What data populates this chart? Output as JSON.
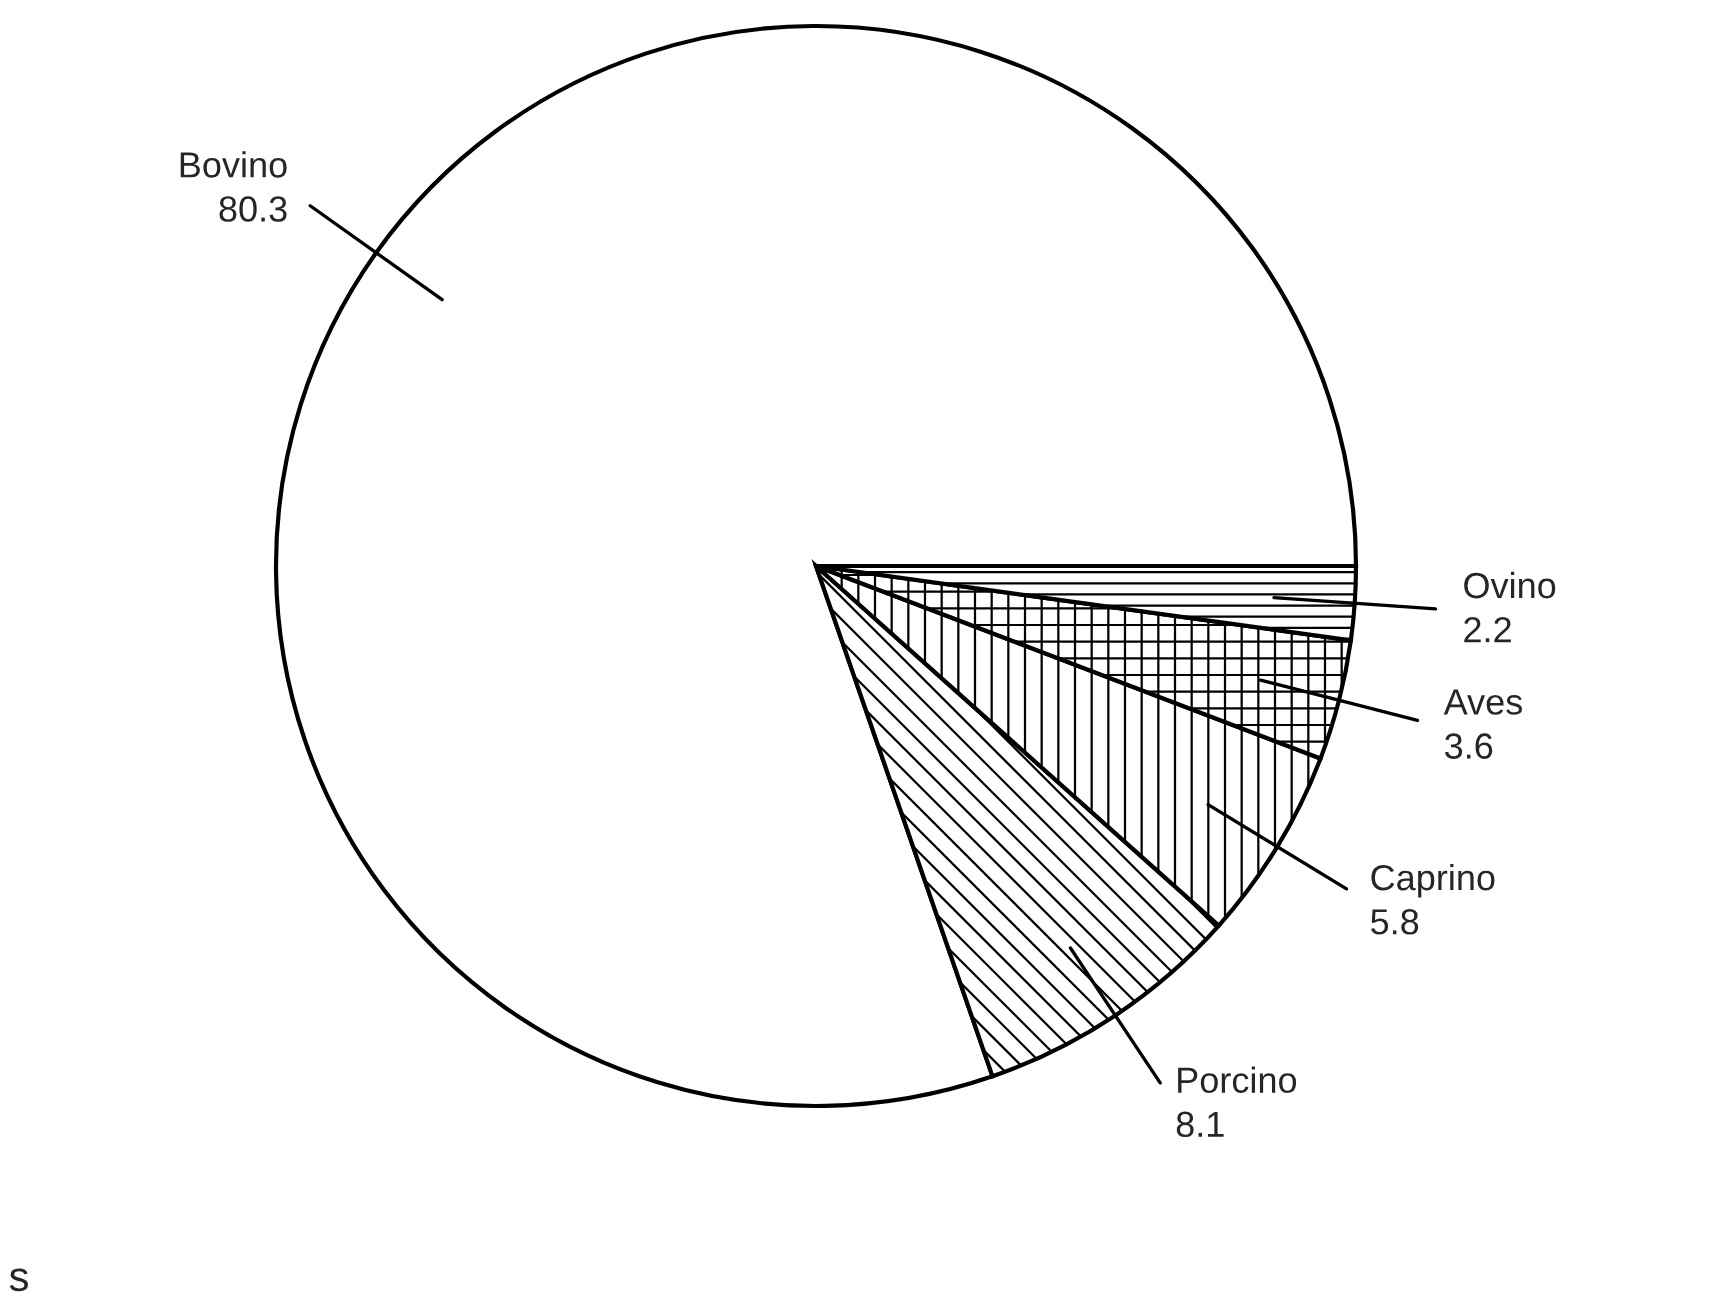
{
  "chart_data": {
    "type": "pie",
    "categories": [
      "Bovino",
      "Porcino",
      "Caprino",
      "Aves",
      "Ovino"
    ],
    "values": [
      80.3,
      8.1,
      5.8,
      3.6,
      2.2
    ],
    "data_labels": true,
    "annotations": [
      "s"
    ]
  }
}
